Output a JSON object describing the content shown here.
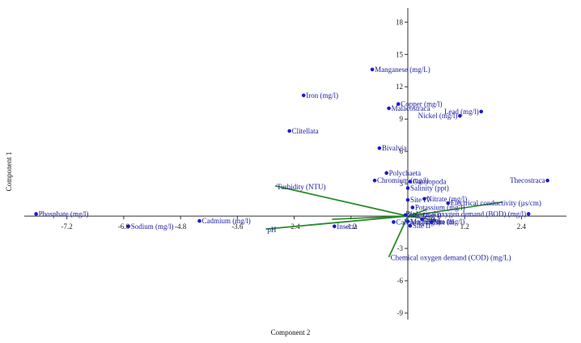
{
  "chart_data": {
    "type": "scatter",
    "xlabel": "Component 2",
    "ylabel": "Component 1",
    "xlim": [
      -8.1,
      3.35
    ],
    "ylim": [
      -9.6,
      19.3
    ],
    "x_ticks": [
      -7.2,
      -6.0,
      -4.8,
      -3.6,
      -2.4,
      -1.2,
      1.2,
      2.4
    ],
    "x_tick_labels": [
      "-7.2",
      "-6.0",
      "-4.8",
      "-3.6",
      "-2.4",
      "-1.2",
      "1.2",
      "2.4"
    ],
    "y_ticks": [
      -9,
      -6,
      -3,
      3,
      6,
      9,
      12,
      15,
      18
    ],
    "y_tick_labels": [
      "-9",
      "-6",
      "-3",
      "3",
      "6",
      "9",
      "12",
      "15",
      "18"
    ],
    "point_color": "#1a1ad0",
    "vector_color": "#2a8a2a",
    "points": [
      {
        "label": "Phosphate (mg/l)",
        "x": -7.85,
        "y": 0.2
      },
      {
        "label": "Sodium (mg/l)",
        "x": -5.9,
        "y": -0.95
      },
      {
        "label": "Cadmium (mg/l)",
        "x": -4.4,
        "y": -0.45
      },
      {
        "label": "Iron (mg/l)",
        "x": -2.2,
        "y": 11.2
      },
      {
        "label": "Clitellata",
        "x": -2.5,
        "y": 7.9
      },
      {
        "label": "Manganese (mg/L)",
        "x": -0.75,
        "y": 13.6
      },
      {
        "label": "Copper (mg/l)",
        "x": -0.2,
        "y": 10.4
      },
      {
        "label": "Malacostraca",
        "x": -0.4,
        "y": 10.0
      },
      {
        "label": "Bivalvia",
        "x": -0.6,
        "y": 6.3
      },
      {
        "label": "Polychaeta",
        "x": -0.45,
        "y": 4.0
      },
      {
        "label": "Chromium (mg/l)",
        "x": -0.7,
        "y": 3.3
      },
      {
        "label": "Gastropoda",
        "x": 0.05,
        "y": 3.2
      },
      {
        "label": "Salinity (ppt)",
        "x": 0.0,
        "y": 2.6
      },
      {
        "label": "Lead (mg/l)",
        "x": 1.55,
        "y": 9.7
      },
      {
        "label": "Nickel (mg/l)",
        "x": 1.1,
        "y": 9.3
      },
      {
        "label": "Thecostraca",
        "x": 2.95,
        "y": 3.3
      },
      {
        "label": "Nitrate (mg/l)",
        "x": 0.35,
        "y": 1.6
      },
      {
        "label": "Electrical conductivity (µs/cm)",
        "x": 0.85,
        "y": 1.2
      },
      {
        "label": "Site IV",
        "x": 0.0,
        "y": 1.5
      },
      {
        "label": "Potassium (mg/l)",
        "x": 0.1,
        "y": 0.8
      },
      {
        "label": "Zinc (mg/l)",
        "x": -0.05,
        "y": 0.1
      },
      {
        "label": "Biological oxygen demand (BOD) (mg/l)",
        "x": 2.55,
        "y": 0.2
      },
      {
        "label": "Calcium (mg/l)",
        "x": -0.3,
        "y": -0.55
      },
      {
        "label": "Insecta",
        "x": -1.55,
        "y": -0.95
      },
      {
        "label": "Magnesium (mg/l)",
        "x": 0.0,
        "y": -0.5
      },
      {
        "label": "Site II",
        "x": 0.05,
        "y": -0.9
      },
      {
        "label": "Site III",
        "x": 0.5,
        "y": -0.55
      },
      {
        "label": "Site I",
        "x": 0.3,
        "y": -0.3
      }
    ],
    "vectors": [
      {
        "label": "Turbidity (NTU)",
        "x": -2.8,
        "y": 2.8
      },
      {
        "label": "pH",
        "x": -3.0,
        "y": -1.2
      },
      {
        "label": "Chemical oxygen demand (COD) (mg/L)",
        "x": -0.4,
        "y": -3.8
      }
    ],
    "extra_lines": [
      {
        "x1": 0.0,
        "y1": 0.0,
        "x2": 2.0,
        "y2": 1.3
      },
      {
        "x1": 0.0,
        "y1": 0.0,
        "x2": -1.6,
        "y2": -0.3
      },
      {
        "x1": 0.0,
        "y1": 0.0,
        "x2": 0.6,
        "y2": -0.4
      },
      {
        "x1": 0.0,
        "y1": 0.0,
        "x2": 0.4,
        "y2": 0.6
      }
    ]
  }
}
